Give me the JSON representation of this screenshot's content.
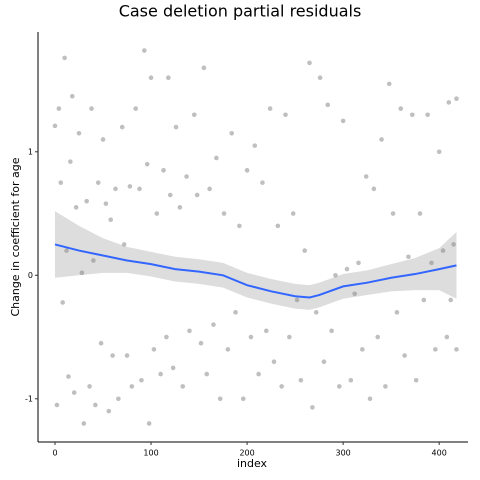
{
  "chart_data": {
    "type": "scatter",
    "title": "Case deletion partial residuals",
    "xlabel": "index",
    "ylabel": "Change in coefficient for age",
    "color": "#7f7f7f",
    "x": [
      0,
      2,
      4,
      6,
      8,
      10,
      12,
      14,
      16,
      18,
      20,
      22,
      25,
      28,
      30,
      33,
      36,
      38,
      40,
      42,
      45,
      48,
      50,
      53,
      56,
      58,
      60,
      63,
      66,
      70,
      72,
      75,
      78,
      80,
      84,
      88,
      90,
      93,
      96,
      98,
      100,
      103,
      106,
      110,
      113,
      116,
      118,
      120,
      123,
      126,
      130,
      133,
      137,
      140,
      145,
      148,
      152,
      155,
      158,
      161,
      165,
      168,
      172,
      176,
      180,
      184,
      188,
      192,
      196,
      200,
      204,
      208,
      212,
      216,
      220,
      224,
      228,
      232,
      236,
      240,
      244,
      248,
      252,
      256,
      260,
      265,
      268,
      272,
      276,
      280,
      284,
      288,
      292,
      296,
      300,
      304,
      308,
      312,
      316,
      320,
      324,
      328,
      332,
      336,
      340,
      344,
      348,
      352,
      356,
      360,
      364,
      368,
      372,
      376,
      380,
      384,
      388,
      392,
      396,
      400,
      404,
      408,
      410,
      412,
      415,
      418,
      418
    ],
    "values": [
      1.21,
      -1.05,
      1.35,
      0.75,
      -0.22,
      1.76,
      0.2,
      -0.82,
      0.92,
      1.45,
      -0.95,
      0.55,
      1.15,
      0.02,
      -1.2,
      0.6,
      -0.9,
      1.35,
      0.12,
      -1.05,
      0.75,
      -0.55,
      1.1,
      0.58,
      -1.1,
      0.45,
      -0.65,
      0.7,
      -1.0,
      1.2,
      0.25,
      -0.65,
      0.72,
      -0.9,
      1.35,
      0.7,
      -0.85,
      1.82,
      0.9,
      -1.2,
      1.6,
      -0.6,
      0.5,
      -0.8,
      0.85,
      -0.5,
      1.6,
      0.65,
      -0.75,
      1.2,
      0.55,
      -0.9,
      0.8,
      -0.45,
      1.3,
      0.65,
      -0.55,
      1.68,
      -0.8,
      0.7,
      -0.4,
      0.95,
      -1.0,
      0.5,
      -0.6,
      1.15,
      -0.3,
      0.4,
      -1.0,
      0.85,
      -0.5,
      1.05,
      -0.8,
      0.75,
      -0.45,
      1.35,
      -0.7,
      0.4,
      -0.9,
      1.3,
      -0.5,
      0.5,
      -0.2,
      -0.85,
      0.2,
      1.72,
      -1.07,
      -0.3,
      1.6,
      -0.7,
      1.38,
      -0.45,
      0.0,
      -0.9,
      1.25,
      0.05,
      -0.85,
      -0.15,
      0.1,
      -0.6,
      0.8,
      -1.0,
      0.7,
      -0.5,
      1.1,
      -0.9,
      1.55,
      0.5,
      -0.3,
      1.35,
      -0.65,
      0.15,
      1.3,
      -0.85,
      0.5,
      -0.2,
      1.3,
      0.1,
      -0.6,
      1.0,
      0.2,
      -0.5,
      1.4,
      -0.2,
      0.25,
      1.43,
      -0.6
    ],
    "fit": {
      "color": "#3366ff",
      "band_color": "#d9d9d9",
      "x": [
        0,
        25,
        50,
        75,
        100,
        125,
        150,
        175,
        200,
        225,
        250,
        265,
        275,
        300,
        325,
        350,
        375,
        400,
        418
      ],
      "values": [
        0.25,
        0.2,
        0.16,
        0.12,
        0.09,
        0.05,
        0.03,
        0.0,
        -0.08,
        -0.13,
        -0.17,
        -0.18,
        -0.16,
        -0.09,
        -0.06,
        -0.02,
        0.01,
        0.05,
        0.08
      ],
      "upper": [
        0.52,
        0.4,
        0.3,
        0.23,
        0.19,
        0.15,
        0.13,
        0.1,
        0.02,
        -0.03,
        -0.07,
        -0.08,
        -0.06,
        0.01,
        0.04,
        0.09,
        0.14,
        0.22,
        0.35
      ],
      "lower": [
        -0.02,
        0.0,
        0.02,
        0.02,
        -0.01,
        -0.05,
        -0.07,
        -0.1,
        -0.18,
        -0.23,
        -0.27,
        -0.28,
        -0.26,
        -0.19,
        -0.16,
        -0.13,
        -0.12,
        -0.12,
        -0.19
      ]
    },
    "xlim": [
      -17.7,
      430
    ],
    "ylim": [
      -1.35,
      1.97
    ],
    "xticks": [
      0,
      100,
      200,
      300,
      400
    ],
    "yticks": [
      -1,
      0,
      1
    ]
  }
}
